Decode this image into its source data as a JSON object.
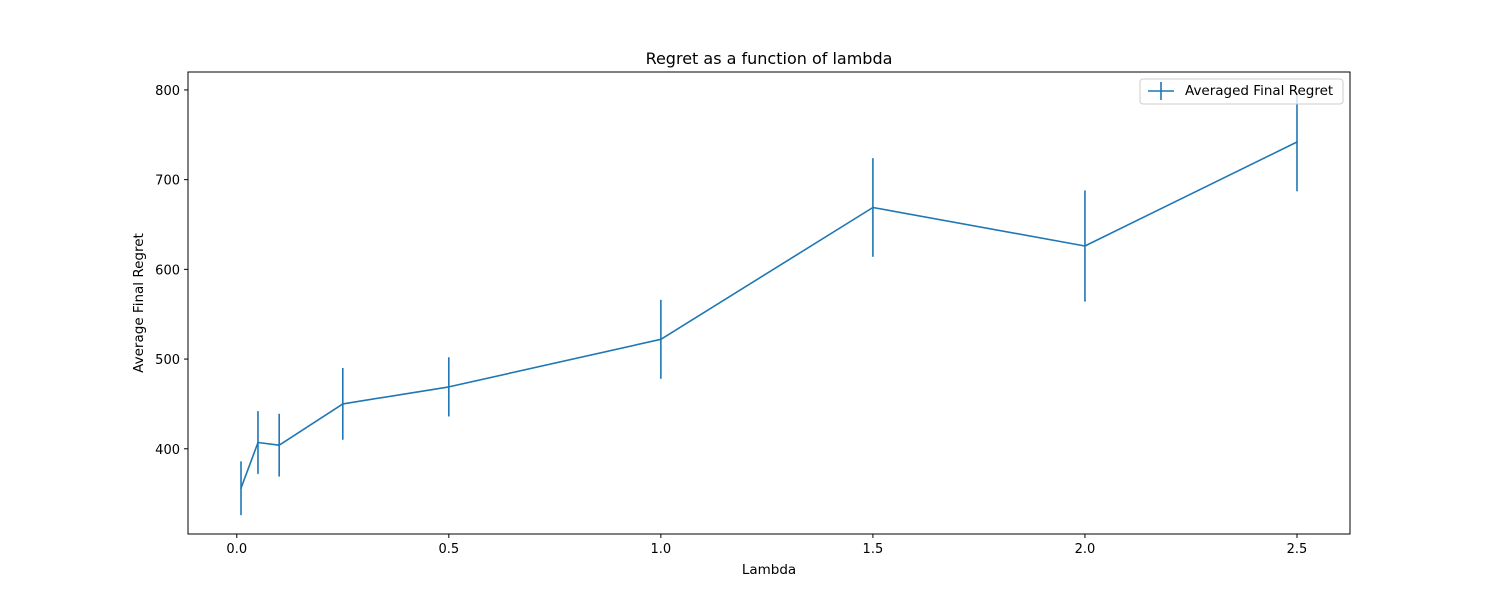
{
  "chart_data": {
    "type": "line",
    "title": "Regret as a function of lambda",
    "xlabel": "Lambda",
    "ylabel": "Average Final Regret",
    "xlim": [
      -0.115,
      2.625
    ],
    "ylim": [
      305,
      820
    ],
    "x_ticks": [
      0.0,
      0.5,
      1.0,
      1.5,
      2.0,
      2.5
    ],
    "x_tick_labels": [
      "0.0",
      "0.5",
      "1.0",
      "1.5",
      "2.0",
      "2.5"
    ],
    "y_ticks": [
      400,
      500,
      600,
      700,
      800
    ],
    "y_tick_labels": [
      "400",
      "500",
      "600",
      "700",
      "800"
    ],
    "grid": false,
    "legend_position": "top-right",
    "series": [
      {
        "name": "Averaged Final Regret",
        "color": "#1f77b4",
        "x": [
          0.01,
          0.05,
          0.1,
          0.25,
          0.5,
          1.0,
          1.5,
          2.0,
          2.5
        ],
        "y": [
          356,
          407,
          404,
          450,
          469,
          522,
          669,
          626,
          742
        ],
        "error": [
          30,
          35,
          35,
          40,
          33,
          44,
          55,
          62,
          55
        ]
      }
    ]
  }
}
